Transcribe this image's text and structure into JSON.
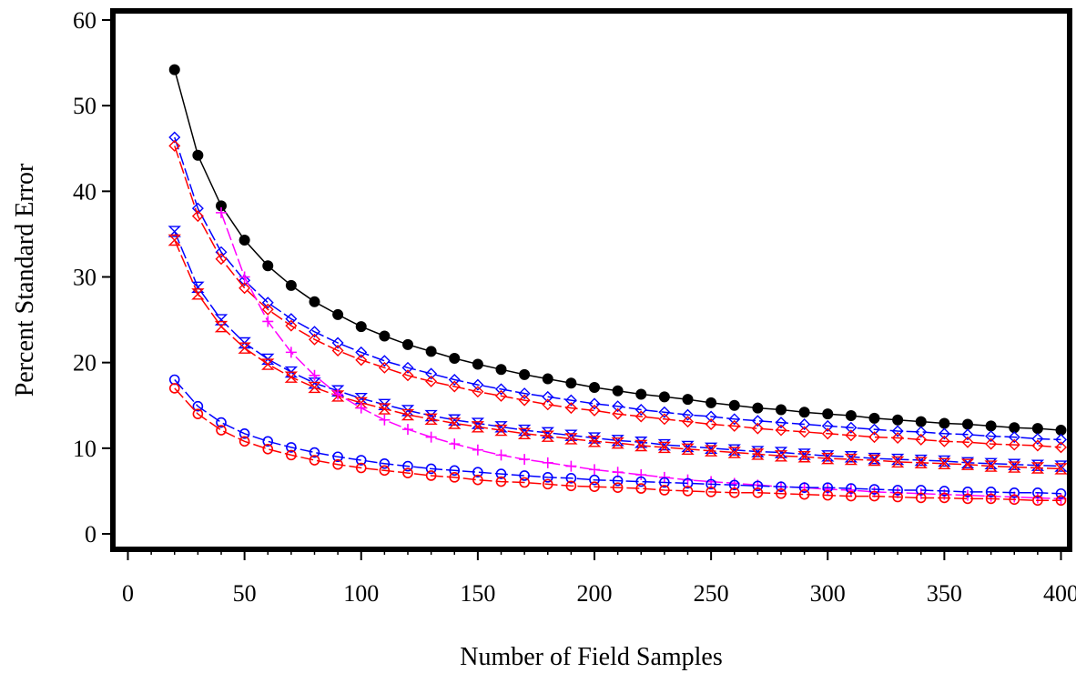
{
  "chart_data": {
    "type": "line",
    "title": "",
    "xlabel": "Number of Field Samples",
    "ylabel": "Percent Standard Error",
    "xlim": [
      0,
      400
    ],
    "ylim": [
      0,
      60
    ],
    "x_ticks": [
      0,
      50,
      100,
      150,
      200,
      250,
      300,
      350,
      400
    ],
    "y_ticks": [
      0,
      10,
      20,
      30,
      40,
      50,
      60
    ],
    "x_tick_labels": [
      "0",
      "50",
      "100",
      "150",
      "200",
      "250",
      "300",
      "350",
      "400"
    ],
    "y_tick_labels": [
      "0",
      "10",
      "20",
      "30",
      "40",
      "50",
      "60"
    ],
    "grid": false,
    "legend": "none",
    "x": [
      20,
      30,
      40,
      50,
      60,
      70,
      80,
      90,
      100,
      110,
      120,
      130,
      140,
      150,
      160,
      170,
      180,
      190,
      200,
      210,
      220,
      230,
      240,
      250,
      260,
      270,
      280,
      290,
      300,
      310,
      320,
      330,
      340,
      350,
      360,
      370,
      380,
      390,
      400
    ],
    "series": [
      {
        "color": "#000000",
        "marker": "filled-circle",
        "dash": "solid",
        "values": [
          54.2,
          44.2,
          38.3,
          34.3,
          31.3,
          29.0,
          27.1,
          25.6,
          24.2,
          23.1,
          22.1,
          21.3,
          20.5,
          19.8,
          19.2,
          18.6,
          18.1,
          17.6,
          17.1,
          16.7,
          16.3,
          16.0,
          15.7,
          15.3,
          15.0,
          14.7,
          14.5,
          14.2,
          14.0,
          13.8,
          13.5,
          13.3,
          13.1,
          12.9,
          12.8,
          12.6,
          12.4,
          12.3,
          12.1
        ]
      },
      {
        "color": "#0000ff",
        "marker": "diamond",
        "dash": "dashed",
        "values": [
          46.3,
          38.0,
          32.9,
          29.6,
          27.0,
          25.1,
          23.6,
          22.3,
          21.2,
          20.2,
          19.4,
          18.7,
          18.0,
          17.4,
          16.9,
          16.4,
          16.0,
          15.6,
          15.2,
          14.9,
          14.5,
          14.2,
          13.9,
          13.7,
          13.4,
          13.2,
          13.0,
          12.8,
          12.6,
          12.4,
          12.2,
          12.0,
          11.9,
          11.7,
          11.6,
          11.4,
          11.3,
          11.1,
          11.0
        ]
      },
      {
        "color": "#ff0000",
        "marker": "diamond",
        "dash": "dashed",
        "values": [
          45.3,
          37.1,
          32.1,
          28.7,
          26.2,
          24.3,
          22.7,
          21.4,
          20.3,
          19.4,
          18.5,
          17.8,
          17.2,
          16.6,
          16.1,
          15.6,
          15.1,
          14.7,
          14.4,
          14.0,
          13.7,
          13.4,
          13.1,
          12.8,
          12.6,
          12.3,
          12.1,
          11.9,
          11.7,
          11.5,
          11.3,
          11.2,
          11.0,
          10.8,
          10.7,
          10.5,
          10.4,
          10.3,
          10.1
        ]
      },
      {
        "color": "#0000ff",
        "marker": "hourglass",
        "dash": "dashed",
        "values": [
          35.3,
          28.8,
          25.0,
          22.3,
          20.4,
          18.9,
          17.6,
          16.7,
          15.8,
          15.1,
          14.4,
          13.8,
          13.3,
          12.9,
          12.5,
          12.1,
          11.8,
          11.5,
          11.2,
          10.9,
          10.7,
          10.4,
          10.2,
          10.0,
          9.8,
          9.6,
          9.5,
          9.3,
          9.1,
          9.0,
          8.8,
          8.7,
          8.6,
          8.5,
          8.3,
          8.2,
          8.1,
          8.0,
          7.9
        ]
      },
      {
        "color": "#ff0000",
        "marker": "hourglass",
        "dash": "dashed",
        "values": [
          34.3,
          28.0,
          24.2,
          21.7,
          19.8,
          18.3,
          17.1,
          16.1,
          15.3,
          14.6,
          13.9,
          13.4,
          12.9,
          12.5,
          12.1,
          11.7,
          11.4,
          11.1,
          10.8,
          10.6,
          10.3,
          10.1,
          9.9,
          9.7,
          9.5,
          9.3,
          9.1,
          9.0,
          8.8,
          8.7,
          8.6,
          8.4,
          8.3,
          8.2,
          8.1,
          7.9,
          7.8,
          7.7,
          7.6
        ]
      },
      {
        "color": "#ff00ff",
        "marker": "plus",
        "dash": "dashed",
        "values": [
          null,
          null,
          37.5,
          30.0,
          24.8,
          21.2,
          18.5,
          16.3,
          14.7,
          13.3,
          12.2,
          11.3,
          10.5,
          9.8,
          9.2,
          8.7,
          8.3,
          7.9,
          7.5,
          7.2,
          6.9,
          6.6,
          6.3,
          6.1,
          5.9,
          5.7,
          5.5,
          5.4,
          5.2,
          5.1,
          4.9,
          4.8,
          4.7,
          4.6,
          4.5,
          4.4,
          4.3,
          4.2,
          4.1
        ]
      },
      {
        "color": "#0000ff",
        "marker": "circle",
        "dash": "dashed",
        "values": [
          18.0,
          14.9,
          13.0,
          11.7,
          10.8,
          10.1,
          9.5,
          9.0,
          8.6,
          8.2,
          7.9,
          7.6,
          7.4,
          7.2,
          7.0,
          6.8,
          6.6,
          6.5,
          6.3,
          6.2,
          6.1,
          6.0,
          5.9,
          5.8,
          5.7,
          5.6,
          5.5,
          5.4,
          5.4,
          5.3,
          5.2,
          5.1,
          5.1,
          5.0,
          4.9,
          4.9,
          4.8,
          4.8,
          4.7
        ]
      },
      {
        "color": "#ff0000",
        "marker": "circle",
        "dash": "dashed",
        "values": [
          17.0,
          14.0,
          12.1,
          10.8,
          9.9,
          9.2,
          8.6,
          8.1,
          7.7,
          7.4,
          7.1,
          6.8,
          6.6,
          6.3,
          6.1,
          6.0,
          5.8,
          5.6,
          5.5,
          5.4,
          5.3,
          5.1,
          5.0,
          4.9,
          4.8,
          4.8,
          4.7,
          4.6,
          4.5,
          4.4,
          4.4,
          4.3,
          4.2,
          4.2,
          4.1,
          4.1,
          4.0,
          3.9,
          3.9
        ]
      }
    ]
  }
}
